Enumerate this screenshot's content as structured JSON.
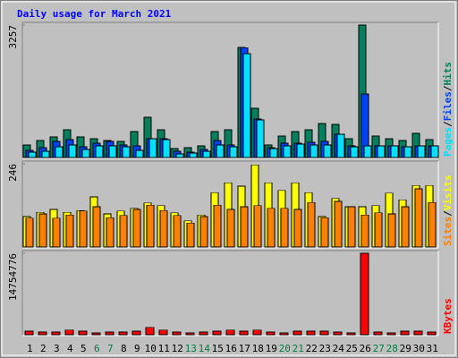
{
  "chart_data": {
    "type": "bar",
    "title": "Daily usage for March 2021",
    "categories": [
      "1",
      "2",
      "3",
      "4",
      "5",
      "6",
      "7",
      "8",
      "9",
      "10",
      "11",
      "12",
      "13",
      "14",
      "15",
      "16",
      "17",
      "18",
      "19",
      "20",
      "21",
      "22",
      "23",
      "24",
      "25",
      "26",
      "27",
      "28",
      "29",
      "30",
      "31"
    ],
    "category_color": "#000000",
    "weekend": [
      5,
      6,
      12,
      13,
      19,
      20,
      26,
      27
    ],
    "weekend_color": "#008040",
    "legend_separator": "/",
    "panels": [
      {
        "ylim": [
          0,
          3257
        ],
        "yticks": [
          3257
        ],
        "series": [
          {
            "name": "Hits",
            "color": "#00805c",
            "values": [
              308,
              418,
              506,
              682,
              506,
              462,
              418,
              396,
              638,
              990,
              682,
              220,
              242,
              286,
              638,
              682,
              2706,
              1210,
              308,
              528,
              638,
              682,
              836,
              814,
              462,
              3257,
              528,
              462,
              418,
              594,
              440
            ]
          },
          {
            "name": "Files",
            "color": "#0040ff",
            "values": [
              176,
              242,
              396,
              440,
              264,
              352,
              396,
              308,
              286,
              462,
              462,
              154,
              132,
              198,
              418,
              308,
              2700,
              946,
              242,
              352,
              352,
              374,
              396,
              572,
              286,
              1562,
              286,
              286,
              264,
              286,
              286
            ]
          },
          {
            "name": "Pages",
            "color": "#00e0ff",
            "values": [
              132,
              154,
              264,
              308,
              198,
              286,
              286,
              264,
              176,
              462,
              440,
              88,
              110,
              154,
              308,
              264,
              2552,
              924,
              220,
              286,
              330,
              308,
              308,
              572,
              264,
              286,
              286,
              286,
              264,
              286,
              286
            ]
          }
        ]
      },
      {
        "ylim": [
          0,
          246
        ],
        "yticks": [
          246
        ],
        "series": [
          {
            "name": "Visits",
            "color": "#ffff00",
            "values": [
              90,
              103,
              111,
              103,
              108,
              148,
              98,
              106,
              114,
              130,
              122,
              101,
              77,
              95,
              161,
              190,
              180,
              243,
              190,
              167,
              190,
              161,
              90,
              143,
              119,
              119,
              122,
              159,
              140,
              182,
              182
            ]
          },
          {
            "name": "Sites",
            "color": "#ff8000",
            "values": [
              85,
              98,
              85,
              95,
              106,
              119,
              87,
              93,
              111,
              124,
              108,
              93,
              71,
              90,
              124,
              111,
              119,
              122,
              114,
              114,
              111,
              132,
              87,
              135,
              119,
              95,
              101,
              98,
              119,
              172,
              132
            ]
          }
        ]
      },
      {
        "ylim": [
          0,
          14754776
        ],
        "yticks": [
          14754776
        ],
        "series": [
          {
            "name": "KBytes",
            "color": "#ff0000",
            "values": [
              656000,
              492000,
              492000,
              820000,
              656000,
              328000,
              492000,
              492000,
              656000,
              1312000,
              820000,
              492000,
              328000,
              492000,
              656000,
              820000,
              656000,
              820000,
              492000,
              328000,
              656000,
              656000,
              656000,
              492000,
              328000,
              14754776,
              492000,
              328000,
              656000,
              656000,
              492000
            ]
          }
        ]
      }
    ]
  }
}
